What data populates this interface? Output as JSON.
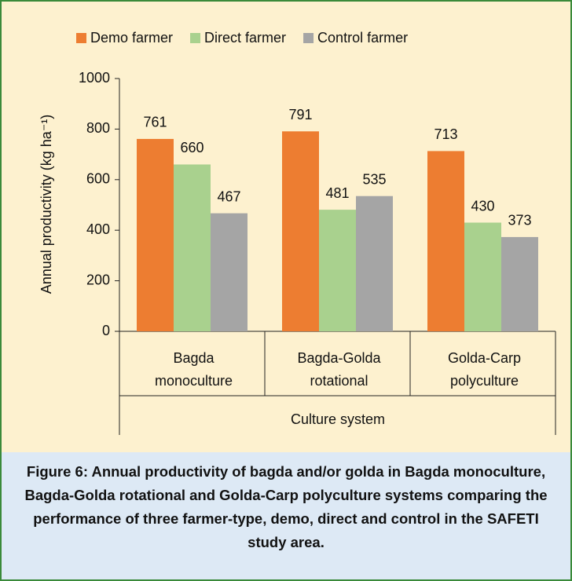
{
  "chart_data": {
    "type": "bar",
    "categories": [
      "Bagda monoculture",
      "Bagda-Golda rotational",
      "Golda-Carp polyculture"
    ],
    "series": [
      {
        "name": "Demo farmer",
        "color": "#ed7d31",
        "values": [
          761,
          791,
          713
        ]
      },
      {
        "name": "Direct farmer",
        "color": "#a9d18e",
        "values": [
          660,
          481,
          430
        ]
      },
      {
        "name": "Control farmer",
        "color": "#a5a5a5",
        "values": [
          467,
          535,
          373
        ]
      }
    ],
    "ylim": [
      0,
      1000
    ],
    "yticks": [
      0,
      200,
      400,
      600,
      800,
      1000
    ],
    "y_label": "Annual productivity (kg ha⁻¹)",
    "x_label": "Culture system",
    "legend": "top",
    "caption": "Figure 6: Annual productivity of bagda and/or golda in Bagda monoculture, Bagda-Golda rotational and Golda-Carp polyculture systems comparing the performance of three farmer-type, demo, direct and control in the SAFETI study area."
  }
}
